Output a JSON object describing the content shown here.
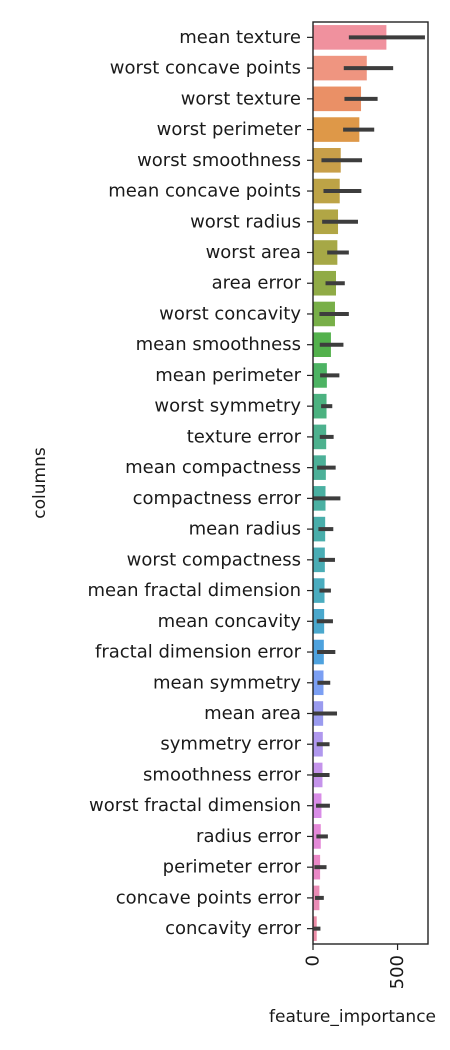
{
  "chart_data": {
    "type": "bar",
    "orientation": "horizontal",
    "title": "",
    "xlabel": "feature_importance",
    "ylabel": "columns",
    "xlim": [
      0,
      680
    ],
    "xticks": [
      0,
      500
    ],
    "grid": false,
    "legend": "none",
    "categories": [
      "mean texture",
      "worst concave points",
      "worst texture",
      "worst perimeter",
      "worst smoothness",
      "mean concave points",
      "worst radius",
      "worst area",
      "area error",
      "worst concavity",
      "mean smoothness",
      "mean perimeter",
      "worst symmetry",
      "texture error",
      "mean compactness",
      "compactness error",
      "mean radius",
      "worst compactness",
      "mean fractal dimension",
      "mean concavity",
      "fractal dimension error",
      "mean symmetry",
      "mean area",
      "symmetry error",
      "smoothness error",
      "worst fractal dimension",
      "radius error",
      "perimeter error",
      "concave points error",
      "concavity error"
    ],
    "values": [
      434,
      318,
      284,
      274,
      164,
      158,
      148,
      144,
      136,
      130,
      106,
      82,
      80,
      78,
      76,
      74,
      72,
      70,
      68,
      66,
      64,
      62,
      60,
      58,
      56,
      50,
      46,
      42,
      38,
      22
    ],
    "error_low": [
      212,
      182,
      186,
      178,
      50,
      62,
      54,
      84,
      74,
      38,
      40,
      42,
      48,
      40,
      24,
      0,
      32,
      34,
      38,
      22,
      24,
      26,
      0,
      22,
      0,
      18,
      20,
      8,
      12,
      4
    ],
    "error_high": [
      662,
      474,
      382,
      362,
      290,
      286,
      266,
      212,
      188,
      212,
      180,
      156,
      114,
      122,
      134,
      162,
      120,
      130,
      106,
      118,
      132,
      102,
      142,
      98,
      98,
      100,
      88,
      80,
      64,
      44
    ],
    "colors": [
      "#f0919e",
      "#ef9580",
      "#ea9066",
      "#de9848",
      "#c89f49",
      "#bda346",
      "#b1a645",
      "#a6a846",
      "#90ab46",
      "#78af48",
      "#53b14c",
      "#4db363",
      "#4cb280",
      "#4db18e",
      "#4cb098",
      "#4ab0a2",
      "#49aeab",
      "#4aadb5",
      "#4aacbf",
      "#4aa8cd",
      "#4ea2de",
      "#7b9ff3",
      "#9a9bef",
      "#b098ee",
      "#c594eb",
      "#d98de7",
      "#e489d8",
      "#ea88c7",
      "#eb8cb6",
      "#ec8da7"
    ],
    "error_color": "#3d3d3d"
  }
}
